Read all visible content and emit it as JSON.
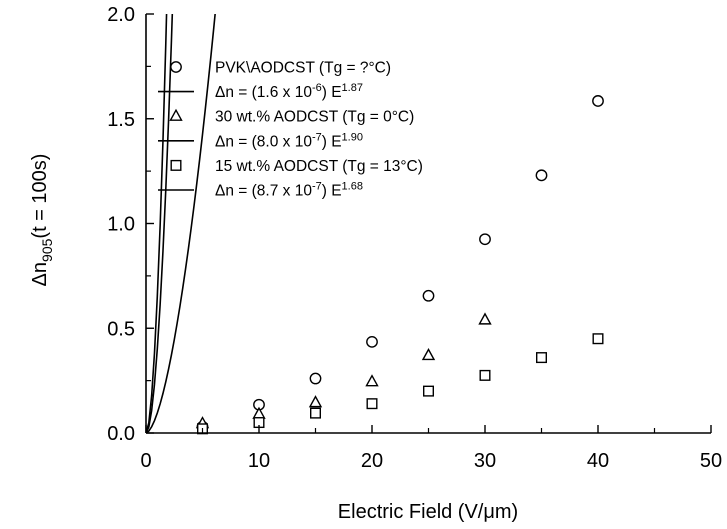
{
  "chart_data": {
    "type": "scatter",
    "title": "",
    "xlabel": "Electric Field (V/μm)",
    "ylabel": {
      "prefix": "Δn",
      "sub": "905",
      "suffix": "(t = 100s)"
    },
    "xlim": [
      0,
      50
    ],
    "ylim": [
      0,
      2.0
    ],
    "xticks": [
      0,
      10,
      20,
      30,
      40,
      50
    ],
    "yticks": [
      0.0,
      0.5,
      1.0,
      1.5,
      2.0
    ],
    "xtick_labels": [
      "0",
      "10",
      "20",
      "30",
      "40",
      "50"
    ],
    "ytick_labels": [
      "0.0",
      "0.5",
      "1.0",
      "1.5",
      "2.0"
    ],
    "grid": false,
    "legend_position": "top-left",
    "series": [
      {
        "name": "PVK\\AODCST (Tg = ?°C)",
        "marker": "circle",
        "x": [
          5,
          10,
          15,
          20,
          25,
          30,
          35,
          40
        ],
        "y": [
          0.03,
          0.135,
          0.26,
          0.435,
          0.655,
          0.925,
          1.23,
          1.585
        ]
      },
      {
        "name": "30 wt.% AODCST (Tg = 0°C)",
        "marker": "triangle",
        "x": [
          5,
          10,
          15,
          20,
          25,
          30
        ],
        "y": [
          0.045,
          0.09,
          0.145,
          0.245,
          0.37,
          0.54
        ]
      },
      {
        "name": "15 wt.% AODCST (Tg = 13°C)",
        "marker": "square",
        "x": [
          5,
          10,
          15,
          20,
          25,
          30,
          35,
          40
        ],
        "y": [
          0.02,
          0.05,
          0.095,
          0.14,
          0.2,
          0.275,
          0.36,
          0.45
        ]
      }
    ],
    "fits": [
      {
        "label": {
          "prefix": "Δn = (1.6 x 10",
          "exp1": "-6",
          "mid": ") E",
          "exp2": "1.87"
        },
        "coef": 1.6e-06,
        "exponent": 1.87
      },
      {
        "label": {
          "prefix": "Δn = (8.0 x 10",
          "exp1": "-7",
          "mid": ") E",
          "exp2": "1.90"
        },
        "coef": 8e-07,
        "exponent": 1.9
      },
      {
        "label": {
          "prefix": "Δn = (8.7 x 10",
          "exp1": "-7",
          "mid": ") E",
          "exp2": "1.68"
        },
        "coef": 8.7e-07,
        "exponent": 1.68
      }
    ],
    "legend_order": [
      "series.0",
      "fits.0",
      "series.1",
      "fits.1",
      "series.2",
      "fits.2"
    ]
  }
}
